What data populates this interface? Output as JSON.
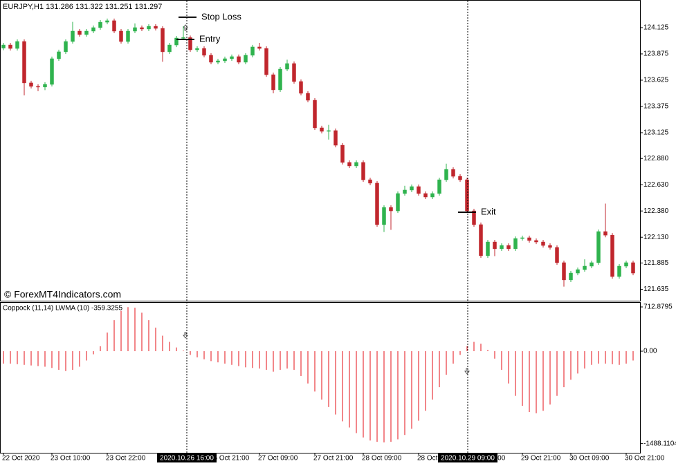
{
  "watermark": "© ForexMT4Indicators.com",
  "crosshair_labels": [
    "2020.10.26 16:00",
    "2020.10.29 09:00"
  ],
  "chart_data": [
    {
      "type": "candlestick",
      "title": "EURJPY,H1  131.286 131.322 131.251 131.297",
      "up_color": "#2fb34e",
      "down_color": "#c0262d",
      "categories": [
        "22 Oct 2020",
        null,
        null,
        null,
        null,
        null,
        null,
        "23 Oct 10:00",
        null,
        null,
        null,
        null,
        null,
        null,
        null,
        "23 Oct 22:00",
        null,
        null,
        null,
        null,
        null,
        null,
        null,
        null,
        null,
        null,
        null,
        null,
        null,
        null,
        "26 Oct 21:00",
        null,
        null,
        null,
        null,
        null,
        null,
        "27 Oct 09:00",
        null,
        null,
        null,
        null,
        null,
        null,
        null,
        "27 Oct 21:00",
        null,
        null,
        null,
        null,
        null,
        null,
        "28 Oct 09:00",
        null,
        null,
        null,
        null,
        null,
        null,
        null,
        "28 Oct 21:00",
        null,
        null,
        null,
        null,
        null,
        null,
        "29 Oct 09:00",
        null,
        null,
        null,
        null,
        null,
        null,
        null,
        "29 Oct 21:00",
        null,
        null,
        null,
        null,
        null,
        null,
        "30 Oct 09:00",
        null,
        null,
        null,
        null,
        null,
        null,
        null,
        "30 Oct 21:00",
        null
      ],
      "open": [
        123.93,
        123.96,
        123.927,
        123.993,
        123.599,
        123.566,
        123.56,
        123.585,
        123.829,
        123.895,
        123.993,
        124.092,
        124.059,
        124.092,
        124.125,
        124.177,
        124.191,
        124.092,
        123.993,
        124.092,
        124.125,
        124.112,
        124.138,
        124.118,
        123.895,
        123.96,
        124.026,
        124.03,
        123.914,
        123.927,
        123.862,
        123.796,
        123.809,
        123.829,
        123.849,
        123.796,
        123.862,
        123.941,
        123.927,
        123.677,
        123.533,
        123.73,
        123.783,
        123.612,
        123.5,
        123.434,
        123.171,
        123.138,
        123.145,
        123.006,
        122.842,
        122.809,
        122.842,
        122.677,
        122.645,
        122.25,
        122.414,
        122.381,
        122.546,
        122.579,
        122.612,
        122.546,
        122.513,
        122.546,
        122.677,
        122.776,
        122.71,
        122.677,
        122.381,
        122.25,
        121.954,
        122.085,
        122.02,
        122.052,
        122.02,
        122.118,
        122.125,
        122.099,
        122.085,
        122.052,
        122.033,
        121.888,
        121.724,
        121.789,
        121.822,
        121.855,
        121.888,
        122.184,
        122.15,
        121.756,
        121.855,
        121.888
      ],
      "high": [
        123.98,
        123.98,
        124.013,
        124.013,
        123.619,
        123.586,
        123.605,
        123.849,
        123.915,
        124.013,
        124.18,
        124.112,
        124.112,
        124.145,
        124.197,
        124.211,
        124.211,
        124.112,
        124.112,
        124.165,
        124.145,
        124.158,
        124.158,
        124.138,
        123.98,
        124.046,
        124.14,
        124.05,
        123.947,
        123.947,
        123.882,
        123.829,
        123.849,
        123.869,
        123.869,
        123.882,
        123.961,
        123.98,
        123.947,
        123.697,
        123.75,
        123.82,
        123.803,
        123.632,
        123.52,
        123.454,
        123.191,
        123.2,
        123.165,
        123.026,
        122.862,
        122.862,
        122.862,
        122.697,
        122.665,
        122.434,
        122.434,
        122.566,
        122.62,
        122.632,
        122.632,
        122.566,
        122.566,
        122.697,
        122.83,
        122.796,
        122.73,
        122.697,
        122.401,
        122.27,
        122.105,
        122.105,
        122.072,
        122.072,
        122.138,
        122.145,
        122.145,
        122.119,
        122.105,
        122.072,
        122.053,
        121.908,
        121.809,
        121.842,
        121.92,
        121.908,
        122.204,
        122.45,
        122.17,
        121.875,
        121.908,
        121.908
      ],
      "low": [
        123.91,
        123.907,
        123.907,
        123.48,
        123.546,
        123.52,
        123.53,
        123.565,
        123.809,
        123.875,
        123.973,
        124.039,
        124.039,
        124.072,
        124.105,
        124.157,
        124.072,
        123.973,
        123.973,
        124.072,
        124.092,
        124.092,
        124.098,
        123.8,
        123.875,
        123.94,
        124.006,
        123.894,
        123.894,
        123.842,
        123.776,
        123.776,
        123.789,
        123.809,
        123.776,
        123.776,
        123.842,
        123.907,
        123.657,
        123.5,
        123.513,
        123.71,
        123.592,
        123.48,
        123.414,
        123.151,
        123.118,
        123.06,
        122.986,
        122.822,
        122.789,
        122.789,
        122.657,
        122.625,
        122.23,
        122.18,
        122.2,
        122.361,
        122.526,
        122.559,
        122.526,
        122.493,
        122.493,
        122.526,
        122.657,
        122.69,
        122.657,
        122.361,
        122.23,
        121.934,
        121.934,
        121.95,
        122.0,
        122.0,
        122.0,
        122.098,
        122.079,
        122.065,
        122.032,
        122.013,
        121.868,
        121.66,
        121.704,
        121.769,
        121.802,
        121.835,
        121.868,
        122.13,
        121.736,
        121.736,
        121.835,
        121.769
      ],
      "close": [
        123.96,
        123.927,
        123.993,
        123.599,
        123.566,
        123.56,
        123.585,
        123.829,
        123.895,
        123.993,
        124.092,
        124.059,
        124.092,
        124.125,
        124.177,
        124.191,
        124.092,
        123.993,
        124.092,
        124.125,
        124.112,
        124.138,
        124.118,
        123.895,
        123.96,
        124.026,
        124.03,
        123.914,
        123.927,
        123.862,
        123.796,
        123.809,
        123.829,
        123.849,
        123.796,
        123.862,
        123.941,
        123.927,
        123.677,
        123.533,
        123.73,
        123.783,
        123.612,
        123.5,
        123.434,
        123.171,
        123.138,
        123.145,
        123.006,
        122.842,
        122.809,
        122.842,
        122.677,
        122.645,
        122.25,
        122.414,
        122.381,
        122.546,
        122.579,
        122.612,
        122.546,
        122.513,
        122.546,
        122.677,
        122.776,
        122.71,
        122.677,
        122.381,
        122.25,
        121.954,
        122.085,
        122.02,
        122.052,
        122.02,
        122.118,
        122.125,
        122.099,
        122.085,
        122.052,
        122.033,
        121.888,
        121.724,
        121.789,
        121.822,
        121.855,
        121.888,
        122.184,
        122.15,
        121.756,
        121.855,
        121.888,
        121.789
      ],
      "ylim": [
        121.526,
        124.388
      ],
      "yticks": [
        124.125,
        123.875,
        123.625,
        123.375,
        123.125,
        {
          "value": 122.88,
          "label": "122.880"
        },
        {
          "value": 122.63,
          "label": "122.630"
        },
        {
          "value": 122.38,
          "label": "122.380"
        },
        {
          "value": 122.13,
          "label": "122.130"
        },
        121.885,
        121.635
      ],
      "annotations": [
        {
          "text": "Stop Loss",
          "value": 124.224
        },
        {
          "text": "Entry",
          "value": 124.013
        },
        {
          "text": "Exit",
          "value": 122.368
        }
      ]
    },
    {
      "type": "histogram-bar",
      "title": "Coppock (11,14) LWMA (10)  -359.3255",
      "color": "#e8353b",
      "values": [
        -200,
        -200,
        -210,
        -220,
        -230,
        -240,
        -250,
        -270,
        -300,
        -320,
        -300,
        -250,
        -150,
        -50,
        80,
        300,
        500,
        650,
        710,
        700,
        620,
        500,
        380,
        250,
        150,
        60,
        10,
        -60,
        -100,
        -130,
        -160,
        -180,
        -200,
        -220,
        -240,
        -260,
        -270,
        -280,
        -300,
        -330,
        -300,
        -280,
        -300,
        -400,
        -520,
        -650,
        -780,
        -900,
        -1020,
        -1130,
        -1230,
        -1320,
        -1390,
        -1440,
        -1460,
        -1470,
        -1460,
        -1420,
        -1350,
        -1250,
        -1120,
        -960,
        -780,
        -580,
        -380,
        -200,
        -60,
        80,
        150,
        120,
        20,
        -120,
        -300,
        -520,
        -720,
        -880,
        -980,
        -1000,
        -960,
        -860,
        -720,
        -580,
        -460,
        -360,
        -280,
        -220,
        -200,
        -200,
        -210,
        -220,
        -200,
        -150
      ],
      "ylim": [
        -1637,
        791
      ],
      "yticks": [
        712.8795,
        {
          "value": 0,
          "label": "0.00"
        },
        -1488.1104
      ]
    }
  ]
}
